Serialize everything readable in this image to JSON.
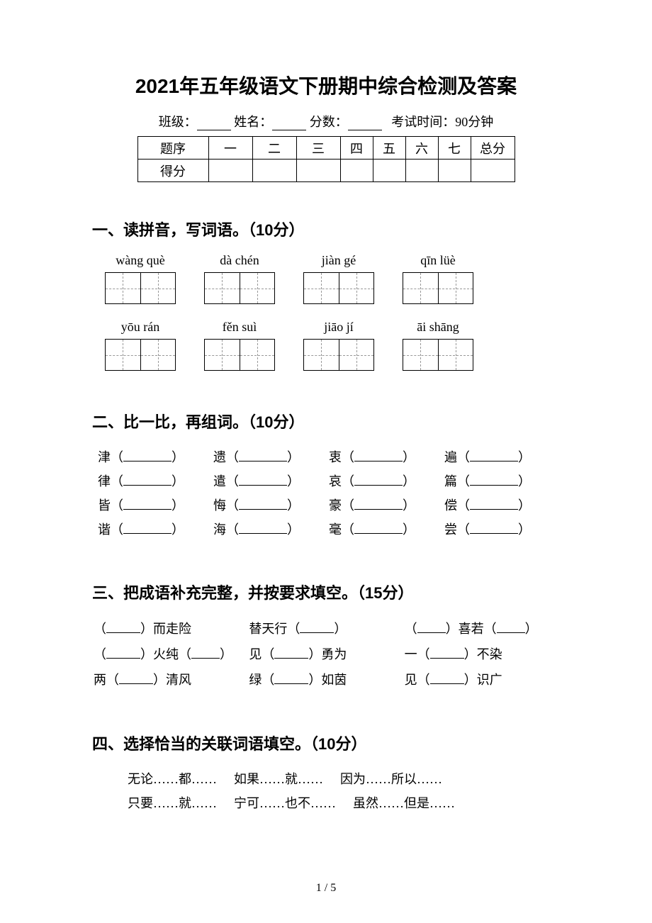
{
  "title": "2021年五年级语文下册期中综合检测及答案",
  "info": {
    "class_label": "班级：",
    "name_label": "姓名：",
    "score_label": "分数：",
    "time_label": "考试时间：90分钟"
  },
  "score_table": {
    "row1_label": "题序",
    "row2_label": "得分",
    "cols": [
      "一",
      "二",
      "三",
      "四",
      "五",
      "六",
      "七",
      "总分"
    ]
  },
  "section1": {
    "heading": "一、读拼音，写词语。（10分）",
    "pinyin_row1": [
      "wàng què",
      "dà chén",
      "jiàn gé",
      "qīn lüè"
    ],
    "pinyin_row2": [
      "yōu rán",
      "fěn suì",
      "jiāo jí",
      "āi shāng"
    ]
  },
  "section2": {
    "heading": "二、比一比，再组词。（10分）",
    "rows": [
      [
        "津",
        "遗",
        "衷",
        "遍"
      ],
      [
        "律",
        "遣",
        "哀",
        "篇"
      ],
      [
        "皆",
        "悔",
        "豪",
        "偿"
      ],
      [
        "谐",
        "海",
        "毫",
        "尝"
      ]
    ]
  },
  "section3": {
    "heading": "三、把成语补充完整，并按要求填空。（15分）",
    "row1": {
      "a_pre": "（",
      "a_post": "）而走险",
      "b_pre": "替天行（",
      "b_post": "）",
      "c_pre": "（",
      "c_mid": "）喜若（",
      "c_post": "）"
    },
    "row2": {
      "a_pre": "（",
      "a_mid": "）火纯（",
      "a_post": "）",
      "b_pre": "见（",
      "b_post": "）勇为",
      "c_pre": "一（",
      "c_post": "）不染"
    },
    "row3": {
      "a_pre": "两（",
      "a_post": "）清风",
      "b_pre": "绿（",
      "b_post": "）如茵",
      "c_pre": "见（",
      "c_post": "）识广"
    }
  },
  "section4": {
    "heading": "四、选择恰当的关联词语填空。（10分）",
    "row1": [
      "无论……都……",
      "如果……就……",
      "因为……所以……"
    ],
    "row2": [
      "只要……就……",
      "宁可……也不……",
      "虽然……但是……"
    ]
  },
  "footer": "1 / 5"
}
